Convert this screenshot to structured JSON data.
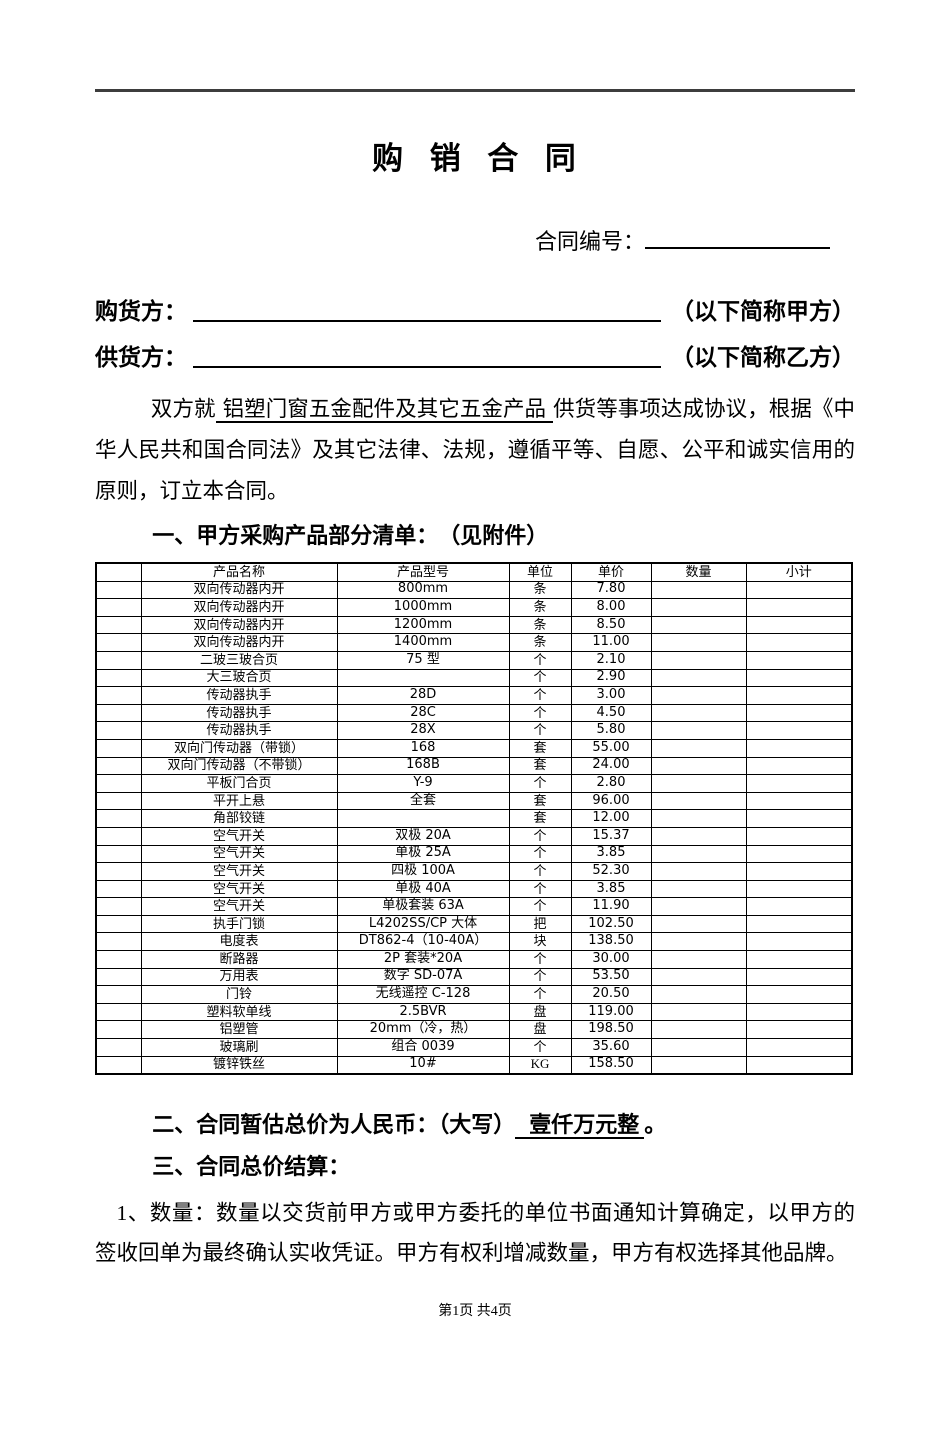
{
  "doc": {
    "title": "购 销 合 同",
    "contract_no": {
      "label": "合同编号：",
      "value": ""
    },
    "buyer": {
      "label": "购货方：",
      "value": "",
      "suffix": "（以下简称甲方）"
    },
    "supplier": {
      "label": "供货方：",
      "value": "",
      "suffix": "（以下简称乙方）"
    },
    "intro": {
      "before": "双方就",
      "subject": "铝塑门窗五金配件及其它五金产品",
      "after": "供货等事项达成协议，根据《中华人民共和国合同法》及其它法律、法规，遵循平等、自愿、公平和诚实信用的原则，订立本合同。"
    },
    "section1": {
      "heading": "一、甲方采购产品部分清单：　（见附件）"
    },
    "section2": {
      "before": "二、合同暂估总价为人民币：（大写）",
      "amount": "壹仟万元整",
      "after": "。"
    },
    "section3": {
      "heading": "三、合同总价结算："
    },
    "clause1": "1、数量：数量以交货前甲方或甲方委托的单位书面通知计算确定，以甲方的签收回单为最终确认实收凭证。甲方有权利增减数量，甲方有权选择其他品牌。",
    "footer": "第1页 共4页"
  },
  "table": {
    "headers": [
      "",
      "产品名称",
      "产品型号",
      "单位",
      "单价",
      "数量",
      "小计"
    ],
    "rows": [
      {
        "name": "双向传动器内开",
        "model": "800mm",
        "unit": "条",
        "price": "7.80",
        "qty": "",
        "subtotal": ""
      },
      {
        "name": "双向传动器内开",
        "model": "1000mm",
        "unit": "条",
        "price": "8.00",
        "qty": "",
        "subtotal": ""
      },
      {
        "name": "双向传动器内开",
        "model": "1200mm",
        "unit": "条",
        "price": "8.50",
        "qty": "",
        "subtotal": ""
      },
      {
        "name": "双向传动器内开",
        "model": "1400mm",
        "unit": "条",
        "price": "11.00",
        "qty": "",
        "subtotal": ""
      },
      {
        "name": "二玻三玻合页",
        "model": "75 型",
        "unit": "个",
        "price": "2.10",
        "qty": "",
        "subtotal": ""
      },
      {
        "name": "大三玻合页",
        "model": "",
        "unit": "个",
        "price": "2.90",
        "qty": "",
        "subtotal": ""
      },
      {
        "name": "传动器执手",
        "model": "28D",
        "unit": "个",
        "price": "3.00",
        "qty": "",
        "subtotal": ""
      },
      {
        "name": "传动器执手",
        "model": "28C",
        "unit": "个",
        "price": "4.50",
        "qty": "",
        "subtotal": ""
      },
      {
        "name": "传动器执手",
        "model": "28X",
        "unit": "个",
        "price": "5.80",
        "qty": "",
        "subtotal": ""
      },
      {
        "name": "双向门传动器（带锁）",
        "model": "168",
        "unit": "套",
        "price": "55.00",
        "qty": "",
        "subtotal": ""
      },
      {
        "name": "双向门传动器（不带锁）",
        "model": "168B",
        "unit": "套",
        "price": "24.00",
        "qty": "",
        "subtotal": ""
      },
      {
        "name": "平板门合页",
        "model": "Y-9",
        "unit": "个",
        "price": "2.80",
        "qty": "",
        "subtotal": ""
      },
      {
        "name": "平开上悬",
        "model": "全套",
        "unit": "套",
        "price": "96.00",
        "qty": "",
        "subtotal": ""
      },
      {
        "name": "角部铰链",
        "model": "",
        "unit": "套",
        "price": "12.00",
        "qty": "",
        "subtotal": ""
      },
      {
        "name": "空气开关",
        "model": "双极 20A",
        "unit": "个",
        "price": "15.37",
        "qty": "",
        "subtotal": ""
      },
      {
        "name": "空气开关",
        "model": "单极 25A",
        "unit": "个",
        "price": "3.85",
        "qty": "",
        "subtotal": ""
      },
      {
        "name": "空气开关",
        "model": "四极 100A",
        "unit": "个",
        "price": "52.30",
        "qty": "",
        "subtotal": ""
      },
      {
        "name": "空气开关",
        "model": "单极 40A",
        "unit": "个",
        "price": "3.85",
        "qty": "",
        "subtotal": ""
      },
      {
        "name": "空气开关",
        "model": "单极套装 63A",
        "unit": "个",
        "price": "11.90",
        "qty": "",
        "subtotal": ""
      },
      {
        "name": "执手门锁",
        "model": "L4202SS/CP 大体",
        "unit": "把",
        "price": "102.50",
        "qty": "",
        "subtotal": ""
      },
      {
        "name": "电度表",
        "model": "DT862-4（10-40A）",
        "unit": "块",
        "price": "138.50",
        "qty": "",
        "subtotal": ""
      },
      {
        "name": "断路器",
        "model": "2P 套装*20A",
        "unit": "个",
        "price": "30.00",
        "qty": "",
        "subtotal": ""
      },
      {
        "name": "万用表",
        "model": "数字 SD-07A",
        "unit": "个",
        "price": "53.50",
        "qty": "",
        "subtotal": ""
      },
      {
        "name": "门铃",
        "model": "无线遥控 C-128",
        "unit": "个",
        "price": "20.50",
        "qty": "",
        "subtotal": ""
      },
      {
        "name": "塑料软单线",
        "model": "2.5BVR",
        "unit": "盘",
        "price": "119.00",
        "qty": "",
        "subtotal": ""
      },
      {
        "name": "铝塑管",
        "model": "20mm（冷，热）",
        "unit": "盘",
        "price": "198.50",
        "qty": "",
        "subtotal": ""
      },
      {
        "name": "玻璃刷",
        "model": "组合 0039",
        "unit": "个",
        "price": "35.60",
        "qty": "",
        "subtotal": ""
      },
      {
        "name": "镀锌铁丝",
        "model": "10#",
        "unit": "KG",
        "price": "158.50",
        "qty": "",
        "subtotal": ""
      }
    ]
  }
}
